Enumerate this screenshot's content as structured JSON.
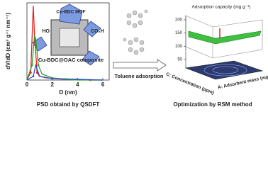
{
  "left_plot": {
    "type": "line",
    "xlabel": "D (nm)",
    "ylabel": "dV/dD (cm³ g⁻¹ nm⁻¹)",
    "xlim": [
      0,
      6.5
    ],
    "xticks": [
      0,
      2,
      4,
      6
    ],
    "ylim": [
      0,
      1
    ],
    "series": [
      {
        "color": "#e8201a",
        "x": [
          0,
          0.3,
          0.5,
          0.6,
          0.8,
          1.0,
          1.5,
          2,
          3,
          4,
          5,
          6
        ],
        "values": [
          0,
          0.1,
          1.0,
          0.6,
          0.1,
          0.05,
          0.03,
          0.02,
          0.01,
          0.01,
          0,
          0
        ]
      },
      {
        "color": "#2aa12a",
        "x": [
          0,
          0.4,
          0.6,
          0.7,
          0.9,
          1.2,
          2,
          3,
          4,
          6
        ],
        "values": [
          0,
          0.2,
          0.6,
          0.55,
          0.2,
          0.08,
          0.03,
          0.01,
          0,
          0
        ]
      },
      {
        "color": "#2a4fd0",
        "x": [
          0,
          0.5,
          0.7,
          1,
          2,
          4,
          6
        ],
        "values": [
          0,
          0.05,
          0.2,
          0.05,
          0.02,
          0.01,
          0
        ]
      }
    ]
  },
  "structure": {
    "mof": "Cu-BDC MOF",
    "ho": "HO",
    "acid": "CO₂H",
    "label": "Cu-BDC@OAC composite"
  },
  "arrow_label": "Toluene adsorption",
  "right_plot": {
    "zlabel": "Adsorption capacity (mg g⁻¹)",
    "zticks": [
      200,
      150,
      100,
      50
    ],
    "clabel": "C: Concentration (ppm)",
    "alabel": "A: Adsorbent mass (mg)"
  },
  "captions": {
    "left": "PSD obtaind by QSDFT",
    "right": "Optimization by RSM method"
  }
}
